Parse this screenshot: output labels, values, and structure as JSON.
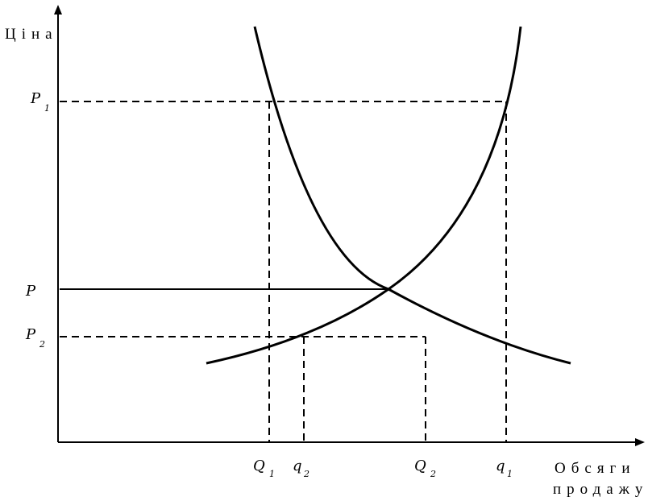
{
  "axes": {
    "y_title": "Ціна",
    "x_title_line1": "Обсяги",
    "x_title_line2": "продажу"
  },
  "price_labels": {
    "p1": {
      "main": "P",
      "sub": "1"
    },
    "p": {
      "main": "P",
      "sub": ""
    },
    "p2": {
      "main": "P",
      "sub": "2"
    }
  },
  "quantity_labels": {
    "Q1": {
      "main": "Q",
      "sub": "1"
    },
    "q2": {
      "main": "q",
      "sub": "2"
    },
    "Q2": {
      "main": "Q",
      "sub": "2"
    },
    "q1": {
      "main": "q",
      "sub": "1"
    }
  }
}
